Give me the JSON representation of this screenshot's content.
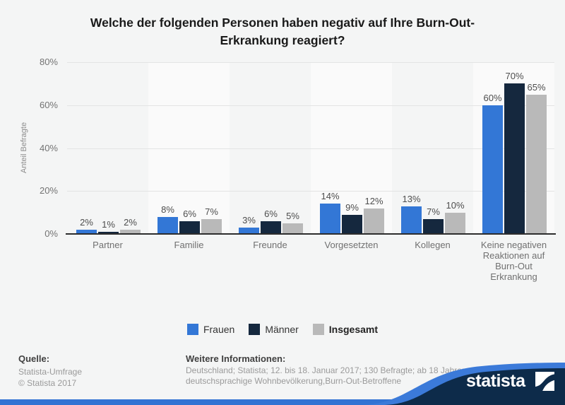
{
  "title": "Welche der folgenden Personen haben negativ auf Ihre Burn-Out-Erkrankung reagiert?",
  "chart_data": {
    "type": "bar",
    "categories": [
      "Partner",
      "Familie",
      "Freunde",
      "Vorgesetzten",
      "Kollegen",
      "Keine negativen Reaktionen auf Burn-Out Erkrankung"
    ],
    "series": [
      {
        "name": "Frauen",
        "color": "#3377d6",
        "values": [
          2,
          8,
          3,
          14,
          13,
          60
        ]
      },
      {
        "name": "Männer",
        "color": "#15283e",
        "values": [
          1,
          6,
          6,
          9,
          7,
          70
        ]
      },
      {
        "name": "Insgesamt",
        "color": "#b9b9b9",
        "values": [
          2,
          7,
          5,
          12,
          10,
          65
        ],
        "emphasis": true
      }
    ],
    "value_suffix": "%",
    "ylabel": "Anteil Befragte",
    "xlabel": "",
    "ylim": [
      0,
      80
    ],
    "yticks": [
      0,
      20,
      40,
      60,
      80
    ],
    "grid": true,
    "legend_position": "bottom",
    "band_colors": {
      "even": "transparent",
      "odd": "#fafafa"
    }
  },
  "footer": {
    "source_label": "Quelle:",
    "source_lines": [
      "Statista-Umfrage",
      "© Statista 2017"
    ],
    "info_label": "Weitere Informationen:",
    "info_text": "Deutschland; Statista; 12. bis 18. Januar 2017; 130 Befragte; ab 18 Jahre; deutschsprachige Wohnbevölkerung,Burn-Out-Betroffene",
    "brand": "statista"
  },
  "colors": {
    "bottom_bar": "#3273d3",
    "swoosh_navy": "#0d2b4a",
    "swoosh_blue": "#3b7ad9",
    "background": "#f4f5f5"
  }
}
